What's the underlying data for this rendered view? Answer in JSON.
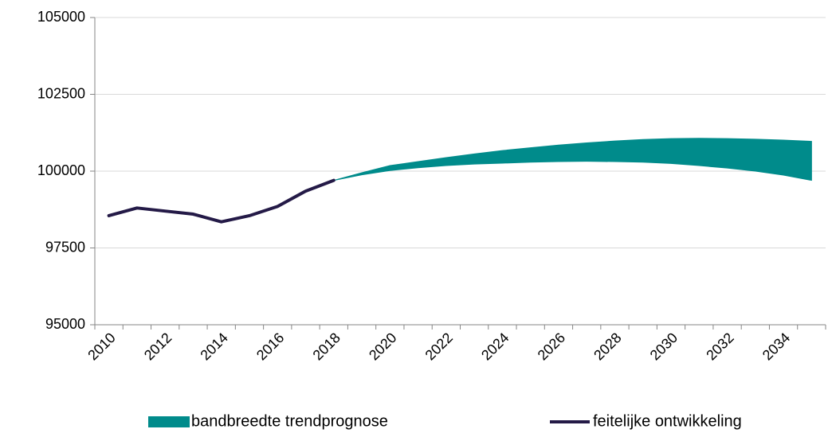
{
  "chart_data": {
    "type": "line",
    "categories": [
      "2010",
      null,
      "2012",
      null,
      "2014",
      null,
      "2016",
      null,
      "2018",
      null,
      "2020",
      null,
      "2022",
      null,
      "2024",
      null,
      "2026",
      null,
      "2028",
      null,
      "2030",
      null,
      "2032",
      null,
      "2034",
      null
    ],
    "series": [
      {
        "name": "bandbreedte trendprognose",
        "type": "band",
        "color": "#008b8b",
        "lower": [
          null,
          null,
          null,
          null,
          null,
          null,
          null,
          null,
          99700,
          99880,
          100020,
          100110,
          100180,
          100230,
          100260,
          100290,
          100310,
          100320,
          100310,
          100290,
          100250,
          100180,
          100100,
          100000,
          99870,
          99700
        ],
        "upper": [
          null,
          null,
          null,
          null,
          null,
          null,
          null,
          null,
          99700,
          99950,
          100180,
          100310,
          100440,
          100560,
          100670,
          100760,
          100850,
          100920,
          100980,
          101030,
          101060,
          101070,
          101060,
          101040,
          101010,
          100970
        ]
      },
      {
        "name": "feitelijke ontwikkeling",
        "type": "line",
        "color": "#241a47",
        "values": [
          98550,
          98800,
          98700,
          98600,
          98350,
          98550,
          98850,
          99350,
          99700,
          null,
          null,
          null,
          null,
          null,
          null,
          null,
          null,
          null,
          null,
          null,
          null,
          null,
          null,
          null,
          null,
          null
        ]
      }
    ],
    "ylim": [
      95000,
      105000
    ],
    "yticks": [
      95000,
      97500,
      100000,
      102500,
      105000
    ],
    "grid": true
  }
}
